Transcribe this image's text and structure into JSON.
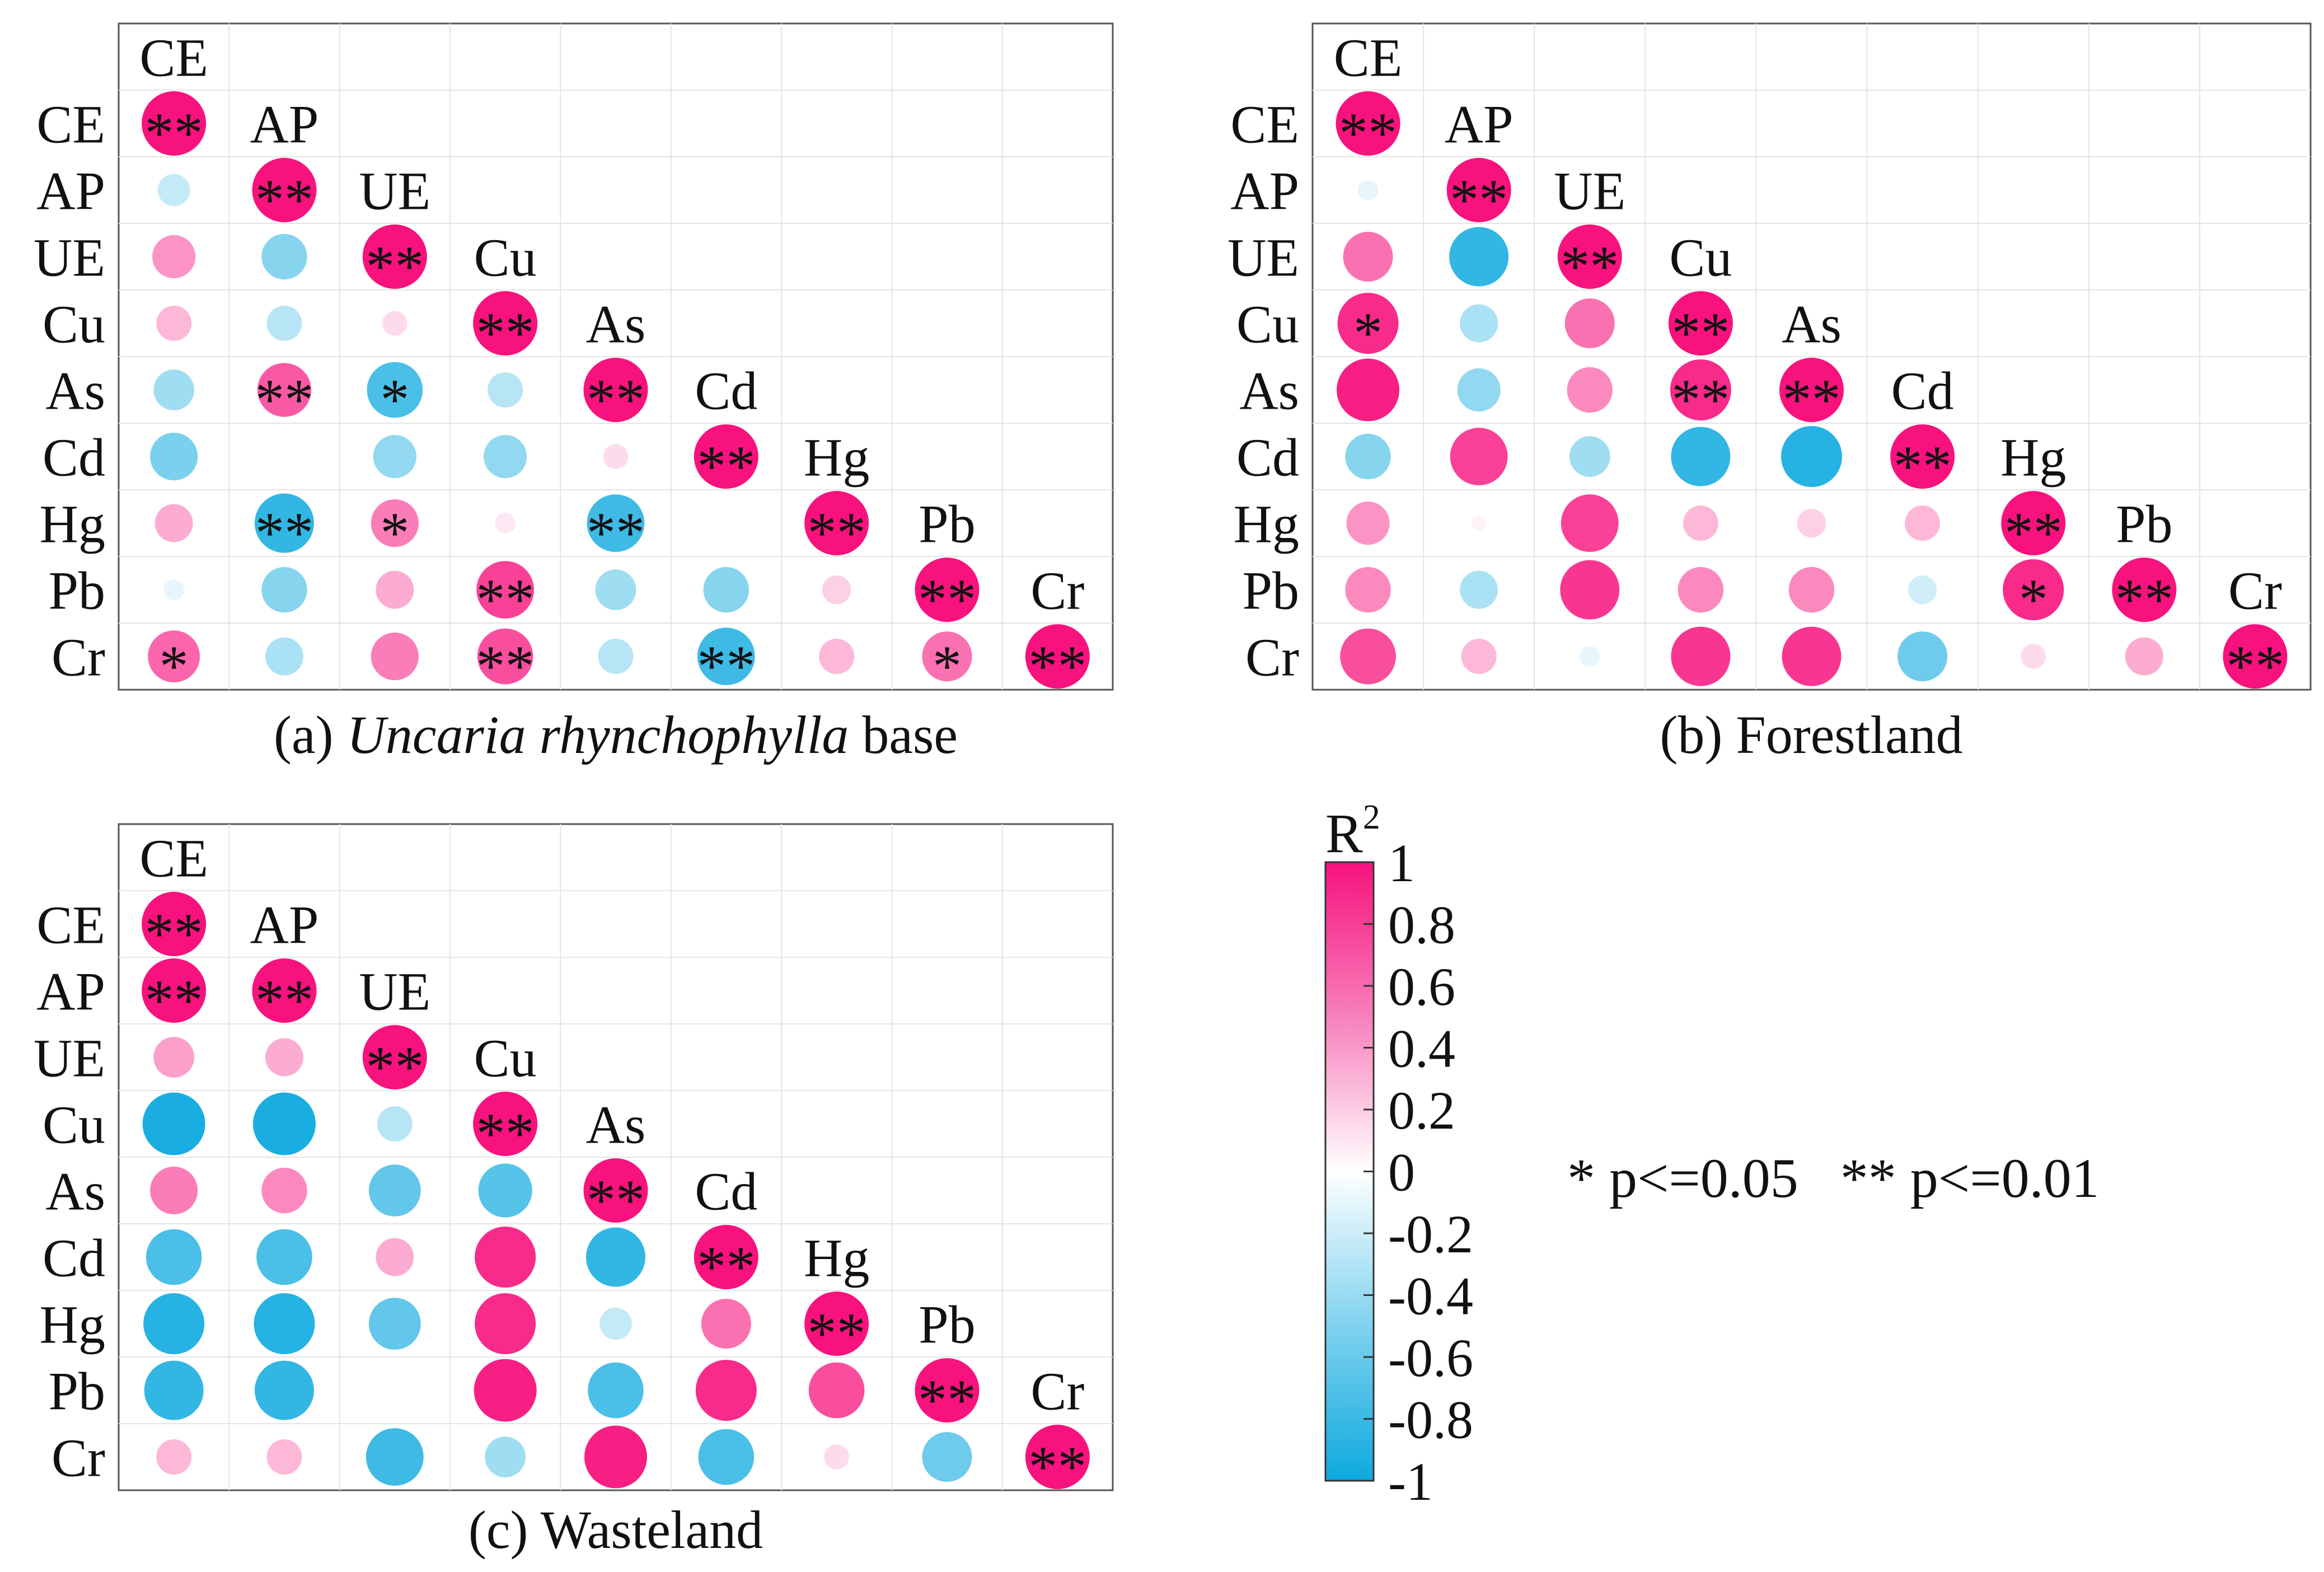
{
  "chart_data": [
    {
      "type": "heatmap",
      "subtype": "lower-triangle correlation dot matrix",
      "caption_prefix": "(a) ",
      "caption_italic": "Uncaria rhynchophylla",
      "caption_suffix": " base",
      "variables": [
        "CE",
        "AP",
        "UE",
        "Cu",
        "As",
        "Cd",
        "Hg",
        "Pb",
        "Cr"
      ],
      "matrix": [
        [
          1.0
        ],
        [
          -0.25,
          1.0
        ],
        [
          0.45,
          -0.5,
          1.0
        ],
        [
          0.3,
          -0.3,
          0.15,
          1.0
        ],
        [
          -0.4,
          0.7,
          -0.75,
          -0.3,
          1.0
        ],
        [
          -0.55,
          0.0,
          -0.45,
          -0.45,
          0.15,
          1.0
        ],
        [
          0.35,
          -0.85,
          0.55,
          0.1,
          -0.8,
          0.0,
          1.0
        ],
        [
          -0.1,
          -0.5,
          0.35,
          0.8,
          -0.4,
          -0.5,
          0.2,
          1.0
        ],
        [
          0.65,
          -0.35,
          0.55,
          0.75,
          -0.3,
          -0.8,
          0.3,
          0.6,
          1.0
        ]
      ],
      "stars": [
        [
          "**"
        ],
        [
          "",
          "**"
        ],
        [
          "",
          "",
          "**"
        ],
        [
          "",
          "",
          "",
          "**"
        ],
        [
          "",
          "**",
          "*",
          "",
          "**"
        ],
        [
          "",
          "",
          "",
          "",
          "",
          "**"
        ],
        [
          "",
          "**",
          "*",
          "",
          "**",
          "",
          "**"
        ],
        [
          "",
          "",
          "",
          "**",
          "",
          "",
          "",
          "**"
        ],
        [
          "*",
          "",
          "",
          "**",
          "",
          "**",
          "",
          "*",
          "**"
        ]
      ]
    },
    {
      "type": "heatmap",
      "subtype": "lower-triangle correlation dot matrix",
      "caption_prefix": "(b) Forestland",
      "caption_italic": "",
      "caption_suffix": "",
      "variables": [
        "CE",
        "AP",
        "UE",
        "Cu",
        "As",
        "Cd",
        "Hg",
        "Pb",
        "Cr"
      ],
      "matrix": [
        [
          1.0
        ],
        [
          -0.1,
          1.0
        ],
        [
          0.6,
          -0.85,
          1.0
        ],
        [
          0.9,
          -0.35,
          0.6,
          1.0
        ],
        [
          0.95,
          -0.45,
          0.5,
          0.9,
          1.0
        ],
        [
          -0.5,
          0.8,
          -0.4,
          -0.85,
          -0.9,
          1.0
        ],
        [
          0.45,
          0.05,
          0.8,
          0.3,
          0.2,
          0.3,
          1.0
        ],
        [
          0.5,
          -0.35,
          0.85,
          0.5,
          0.5,
          -0.2,
          0.9,
          1.0
        ],
        [
          0.75,
          0.3,
          -0.1,
          0.85,
          0.85,
          -0.6,
          0.15,
          0.35,
          1.0
        ]
      ],
      "stars": [
        [
          "**"
        ],
        [
          "",
          "**"
        ],
        [
          "",
          "",
          "**"
        ],
        [
          "*",
          "",
          "",
          "**"
        ],
        [
          "",
          "",
          "",
          "**",
          "**"
        ],
        [
          "",
          "",
          "",
          "",
          "",
          "**"
        ],
        [
          "",
          "",
          "",
          "",
          "",
          "",
          "**"
        ],
        [
          "",
          "",
          "",
          "",
          "",
          "",
          "*",
          "**"
        ],
        [
          "",
          "",
          "",
          "",
          "",
          "",
          "",
          "",
          "**"
        ]
      ]
    },
    {
      "type": "heatmap",
      "subtype": "lower-triangle correlation dot matrix",
      "caption_prefix": "(c) Wasteland",
      "caption_italic": "",
      "caption_suffix": "",
      "variables": [
        "CE",
        "AP",
        "UE",
        "Cu",
        "As",
        "Cd",
        "Hg",
        "Pb",
        "Cr"
      ],
      "matrix": [
        [
          1.0
        ],
        [
          1.0,
          1.0
        ],
        [
          0.4,
          0.35,
          1.0
        ],
        [
          -0.95,
          -0.95,
          -0.3,
          1.0
        ],
        [
          0.55,
          0.5,
          -0.65,
          -0.7,
          1.0
        ],
        [
          -0.75,
          -0.75,
          0.35,
          0.9,
          -0.85,
          1.0
        ],
        [
          -0.9,
          -0.9,
          -0.65,
          0.9,
          -0.25,
          0.6,
          1.0
        ],
        [
          -0.85,
          -0.85,
          0.0,
          0.95,
          -0.75,
          0.9,
          0.75,
          1.0
        ],
        [
          0.3,
          0.3,
          -0.8,
          -0.4,
          0.95,
          -0.75,
          0.15,
          -0.6,
          1.0
        ]
      ],
      "stars": [
        [
          "**"
        ],
        [
          "**",
          "**"
        ],
        [
          "",
          "",
          "**"
        ],
        [
          "",
          "",
          "",
          "**"
        ],
        [
          "",
          "",
          "",
          "",
          "**"
        ],
        [
          "",
          "",
          "",
          "",
          "",
          "**"
        ],
        [
          "",
          "",
          "",
          "",
          "",
          "",
          "**"
        ],
        [
          "",
          "",
          "",
          "",
          "",
          "",
          "",
          "**"
        ],
        [
          "",
          "",
          "",
          "",
          "",
          "",
          "",
          "",
          "**"
        ]
      ]
    }
  ],
  "colorbar": {
    "title_base": "R",
    "title_sup": "2",
    "ticks": [
      "1",
      "0.8",
      "0.6",
      "0.4",
      "0.2",
      "0",
      "-0.2",
      "-0.4",
      "-0.6",
      "-0.8",
      "-1"
    ],
    "range": [
      -1,
      1
    ],
    "positive_color": "#f7127d",
    "negative_color": "#0ea9df",
    "zero_color": "#ffffff"
  },
  "significance_note": "* p<=0.05   ** p<=0.01"
}
